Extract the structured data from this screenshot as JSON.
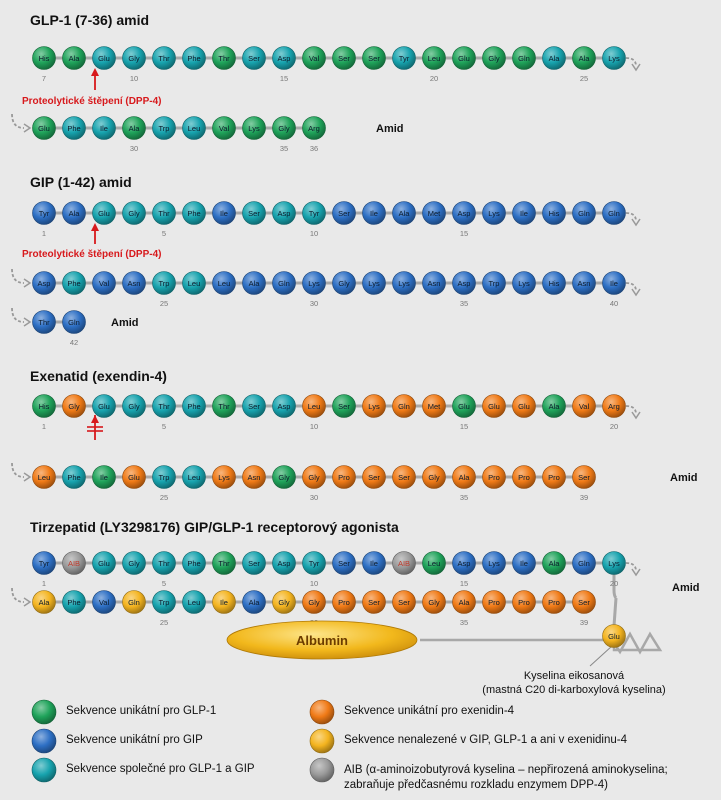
{
  "colors": {
    "glp1": "#1fa35a",
    "gip": "#2d6fc4",
    "shared": "#17a3ae",
    "exenatide": "#f07a16",
    "none": "#f4b41f",
    "aib": "#9a9a9a",
    "cleave": "#d7191c",
    "line": "#a8a8a8"
  },
  "sections": [
    {
      "title": "GLP-1 (7-36) amid",
      "cleavage_label": "Proteolytické štěpení (DPP-4)",
      "rows": [
        {
          "residues": [
            {
              "aa": "His",
              "c": "glp1"
            },
            {
              "aa": "Ala",
              "c": "glp1"
            },
            {
              "aa": "Glu",
              "c": "shared"
            },
            {
              "aa": "Gly",
              "c": "shared"
            },
            {
              "aa": "Thr",
              "c": "shared"
            },
            {
              "aa": "Phe",
              "c": "shared"
            },
            {
              "aa": "Thr",
              "c": "glp1"
            },
            {
              "aa": "Ser",
              "c": "shared"
            },
            {
              "aa": "Asp",
              "c": "shared"
            },
            {
              "aa": "Val",
              "c": "glp1"
            },
            {
              "aa": "Ser",
              "c": "glp1"
            },
            {
              "aa": "Ser",
              "c": "glp1"
            },
            {
              "aa": "Tyr",
              "c": "shared"
            },
            {
              "aa": "Leu",
              "c": "glp1"
            },
            {
              "aa": "Glu",
              "c": "glp1"
            },
            {
              "aa": "Gly",
              "c": "glp1"
            },
            {
              "aa": "Gln",
              "c": "glp1"
            },
            {
              "aa": "Ala",
              "c": "shared"
            },
            {
              "aa": "Ala",
              "c": "glp1"
            },
            {
              "aa": "Lys",
              "c": "shared"
            }
          ],
          "numbers": [
            {
              "i": 0,
              "n": "7"
            },
            {
              "i": 3,
              "n": "10"
            },
            {
              "i": 8,
              "n": "15"
            },
            {
              "i": 13,
              "n": "20"
            },
            {
              "i": 18,
              "n": "25"
            }
          ]
        },
        {
          "residues": [
            {
              "aa": "Glu",
              "c": "glp1"
            },
            {
              "aa": "Phe",
              "c": "shared"
            },
            {
              "aa": "Ile",
              "c": "shared"
            },
            {
              "aa": "Ala",
              "c": "glp1"
            },
            {
              "aa": "Trp",
              "c": "shared"
            },
            {
              "aa": "Leu",
              "c": "shared"
            },
            {
              "aa": "Val",
              "c": "glp1"
            },
            {
              "aa": "Lys",
              "c": "glp1"
            },
            {
              "aa": "Gly",
              "c": "glp1"
            },
            {
              "aa": "Arg",
              "c": "glp1"
            }
          ],
          "numbers": [
            {
              "i": 3,
              "n": "30"
            },
            {
              "i": 8,
              "n": "35"
            },
            {
              "i": 9,
              "n": "36"
            }
          ],
          "amid": "Amid"
        }
      ]
    },
    {
      "title": "GIP (1-42) amid",
      "cleavage_label": "Proteolytické štěpení (DPP-4)",
      "rows": [
        {
          "residues": [
            {
              "aa": "Tyr",
              "c": "gip"
            },
            {
              "aa": "Ala",
              "c": "gip"
            },
            {
              "aa": "Glu",
              "c": "shared"
            },
            {
              "aa": "Gly",
              "c": "shared"
            },
            {
              "aa": "Thr",
              "c": "shared"
            },
            {
              "aa": "Phe",
              "c": "shared"
            },
            {
              "aa": "Ile",
              "c": "gip"
            },
            {
              "aa": "Ser",
              "c": "shared"
            },
            {
              "aa": "Asp",
              "c": "shared"
            },
            {
              "aa": "Tyr",
              "c": "shared"
            },
            {
              "aa": "Ser",
              "c": "gip"
            },
            {
              "aa": "Ile",
              "c": "gip"
            },
            {
              "aa": "Ala",
              "c": "gip"
            },
            {
              "aa": "Met",
              "c": "gip"
            },
            {
              "aa": "Asp",
              "c": "gip"
            },
            {
              "aa": "Lys",
              "c": "gip"
            },
            {
              "aa": "Ile",
              "c": "gip"
            },
            {
              "aa": "His",
              "c": "gip"
            },
            {
              "aa": "Gln",
              "c": "gip"
            },
            {
              "aa": "Gln",
              "c": "gip"
            }
          ],
          "numbers": [
            {
              "i": 0,
              "n": "1"
            },
            {
              "i": 4,
              "n": "5"
            },
            {
              "i": 9,
              "n": "10"
            },
            {
              "i": 14,
              "n": "15"
            }
          ]
        },
        {
          "residues": [
            {
              "aa": "Asp",
              "c": "gip"
            },
            {
              "aa": "Phe",
              "c": "shared"
            },
            {
              "aa": "Val",
              "c": "gip"
            },
            {
              "aa": "Asn",
              "c": "gip"
            },
            {
              "aa": "Trp",
              "c": "shared"
            },
            {
              "aa": "Leu",
              "c": "shared"
            },
            {
              "aa": "Leu",
              "c": "gip"
            },
            {
              "aa": "Ala",
              "c": "gip"
            },
            {
              "aa": "Gln",
              "c": "gip"
            },
            {
              "aa": "Lys",
              "c": "gip"
            },
            {
              "aa": "Gly",
              "c": "gip"
            },
            {
              "aa": "Lys",
              "c": "gip"
            },
            {
              "aa": "Lys",
              "c": "gip"
            },
            {
              "aa": "Asn",
              "c": "gip"
            },
            {
              "aa": "Asp",
              "c": "gip"
            },
            {
              "aa": "Trp",
              "c": "gip"
            },
            {
              "aa": "Lys",
              "c": "gip"
            },
            {
              "aa": "His",
              "c": "gip"
            },
            {
              "aa": "Asn",
              "c": "gip"
            },
            {
              "aa": "Ile",
              "c": "gip"
            }
          ],
          "numbers": [
            {
              "i": 4,
              "n": "25"
            },
            {
              "i": 9,
              "n": "30"
            },
            {
              "i": 14,
              "n": "35"
            },
            {
              "i": 19,
              "n": "40"
            }
          ]
        },
        {
          "residues": [
            {
              "aa": "Thr",
              "c": "gip"
            },
            {
              "aa": "Gln",
              "c": "gip"
            }
          ],
          "numbers": [
            {
              "i": 1,
              "n": "42"
            }
          ],
          "amid": "Amid"
        }
      ]
    },
    {
      "title": "Exenatid (exendin-4)",
      "rows": [
        {
          "residues": [
            {
              "aa": "His",
              "c": "glp1"
            },
            {
              "aa": "Gly",
              "c": "exenatide"
            },
            {
              "aa": "Glu",
              "c": "shared"
            },
            {
              "aa": "Gly",
              "c": "shared"
            },
            {
              "aa": "Thr",
              "c": "shared"
            },
            {
              "aa": "Phe",
              "c": "shared"
            },
            {
              "aa": "Thr",
              "c": "glp1"
            },
            {
              "aa": "Ser",
              "c": "shared"
            },
            {
              "aa": "Asp",
              "c": "shared"
            },
            {
              "aa": "Leu",
              "c": "exenatide"
            },
            {
              "aa": "Ser",
              "c": "glp1"
            },
            {
              "aa": "Lys",
              "c": "exenatide"
            },
            {
              "aa": "Gln",
              "c": "exenatide"
            },
            {
              "aa": "Met",
              "c": "exenatide"
            },
            {
              "aa": "Glu",
              "c": "glp1"
            },
            {
              "aa": "Glu",
              "c": "exenatide"
            },
            {
              "aa": "Glu",
              "c": "exenatide"
            },
            {
              "aa": "Ala",
              "c": "glp1"
            },
            {
              "aa": "Val",
              "c": "exenatide"
            },
            {
              "aa": "Arg",
              "c": "exenatide"
            }
          ],
          "numbers": [
            {
              "i": 0,
              "n": "1"
            },
            {
              "i": 4,
              "n": "5"
            },
            {
              "i": 9,
              "n": "10"
            },
            {
              "i": 14,
              "n": "15"
            },
            {
              "i": 19,
              "n": "20"
            }
          ]
        },
        {
          "residues": [
            {
              "aa": "Leu",
              "c": "exenatide"
            },
            {
              "aa": "Phe",
              "c": "shared"
            },
            {
              "aa": "Ile",
              "c": "glp1"
            },
            {
              "aa": "Glu",
              "c": "exenatide"
            },
            {
              "aa": "Trp",
              "c": "shared"
            },
            {
              "aa": "Leu",
              "c": "shared"
            },
            {
              "aa": "Lys",
              "c": "exenatide"
            },
            {
              "aa": "Asn",
              "c": "exenatide"
            },
            {
              "aa": "Gly",
              "c": "glp1"
            },
            {
              "aa": "Gly",
              "c": "exenatide"
            },
            {
              "aa": "Pro",
              "c": "exenatide"
            },
            {
              "aa": "Ser",
              "c": "exenatide"
            },
            {
              "aa": "Ser",
              "c": "exenatide"
            },
            {
              "aa": "Gly",
              "c": "exenatide"
            },
            {
              "aa": "Ala",
              "c": "exenatide"
            },
            {
              "aa": "Pro",
              "c": "exenatide"
            },
            {
              "aa": "Pro",
              "c": "exenatide"
            },
            {
              "aa": "Pro",
              "c": "exenatide"
            },
            {
              "aa": "Ser",
              "c": "exenatide"
            }
          ],
          "numbers": [
            {
              "i": 4,
              "n": "25"
            },
            {
              "i": 9,
              "n": "30"
            },
            {
              "i": 14,
              "n": "35"
            },
            {
              "i": 18,
              "n": "39"
            }
          ],
          "amid": "Amid"
        }
      ]
    },
    {
      "title": "Tirzepatid (LY3298176) GIP/GLP-1 receptorový agonista",
      "rows": [
        {
          "residues": [
            {
              "aa": "Tyr",
              "c": "gip"
            },
            {
              "aa": "AIB",
              "c": "aib"
            },
            {
              "aa": "Glu",
              "c": "shared"
            },
            {
              "aa": "Gly",
              "c": "shared"
            },
            {
              "aa": "Thr",
              "c": "shared"
            },
            {
              "aa": "Phe",
              "c": "shared"
            },
            {
              "aa": "Thr",
              "c": "glp1"
            },
            {
              "aa": "Ser",
              "c": "shared"
            },
            {
              "aa": "Asp",
              "c": "shared"
            },
            {
              "aa": "Tyr",
              "c": "shared"
            },
            {
              "aa": "Ser",
              "c": "gip"
            },
            {
              "aa": "Ile",
              "c": "gip"
            },
            {
              "aa": "AIB",
              "c": "aib"
            },
            {
              "aa": "Leu",
              "c": "glp1"
            },
            {
              "aa": "Asp",
              "c": "gip"
            },
            {
              "aa": "Lys",
              "c": "gip"
            },
            {
              "aa": "Ile",
              "c": "gip"
            },
            {
              "aa": "Ala",
              "c": "glp1"
            },
            {
              "aa": "Gln",
              "c": "gip"
            },
            {
              "aa": "Lys",
              "c": "shared"
            }
          ],
          "numbers": [
            {
              "i": 0,
              "n": "1"
            },
            {
              "i": 4,
              "n": "5"
            },
            {
              "i": 9,
              "n": "10"
            },
            {
              "i": 14,
              "n": "15"
            },
            {
              "i": 19,
              "n": "20"
            }
          ]
        },
        {
          "residues": [
            {
              "aa": "Ala",
              "c": "none"
            },
            {
              "aa": "Phe",
              "c": "shared"
            },
            {
              "aa": "Val",
              "c": "gip"
            },
            {
              "aa": "Gln",
              "c": "none"
            },
            {
              "aa": "Trp",
              "c": "shared"
            },
            {
              "aa": "Leu",
              "c": "shared"
            },
            {
              "aa": "Ile",
              "c": "none"
            },
            {
              "aa": "Ala",
              "c": "gip"
            },
            {
              "aa": "Gly",
              "c": "none"
            },
            {
              "aa": "Gly",
              "c": "exenatide"
            },
            {
              "aa": "Pro",
              "c": "exenatide"
            },
            {
              "aa": "Ser",
              "c": "exenatide"
            },
            {
              "aa": "Ser",
              "c": "exenatide"
            },
            {
              "aa": "Gly",
              "c": "exenatide"
            },
            {
              "aa": "Ala",
              "c": "exenatide"
            },
            {
              "aa": "Pro",
              "c": "exenatide"
            },
            {
              "aa": "Pro",
              "c": "exenatide"
            },
            {
              "aa": "Pro",
              "c": "exenatide"
            },
            {
              "aa": "Ser",
              "c": "exenatide"
            }
          ],
          "numbers": [
            {
              "i": 4,
              "n": "25"
            },
            {
              "i": 9,
              "n": "30"
            },
            {
              "i": 14,
              "n": "35"
            },
            {
              "i": 18,
              "n": "39"
            }
          ],
          "amid": "Amid"
        }
      ],
      "side_chain": {
        "aa": "Glu",
        "c": "none"
      },
      "albumin_label": "Albumin",
      "fatty_acid_label": "Kyselina eikosanová\n(mastná C20 di-karboxylová kyselina)"
    }
  ],
  "legend": [
    {
      "c": "glp1",
      "text": "Sekvence unikátní pro GLP-1"
    },
    {
      "c": "exenatide",
      "text": "Sekvence unikátní pro exenidin-4"
    },
    {
      "c": "gip",
      "text": "Sekvence unikátní pro GIP"
    },
    {
      "c": "none",
      "text": "Sekvence nenalezené v GIP, GLP-1 a ani v exenidinu-4"
    },
    {
      "c": "shared",
      "text": "Sekvence společné pro GLP-1 a GIP"
    },
    {
      "c": "aib",
      "text": "AIB (α-aminoizobutyrová kyselina – nepřirozená aminokyselina;\nzabraňuje předčasnému rozkladu enzymem DPP-4)"
    }
  ]
}
